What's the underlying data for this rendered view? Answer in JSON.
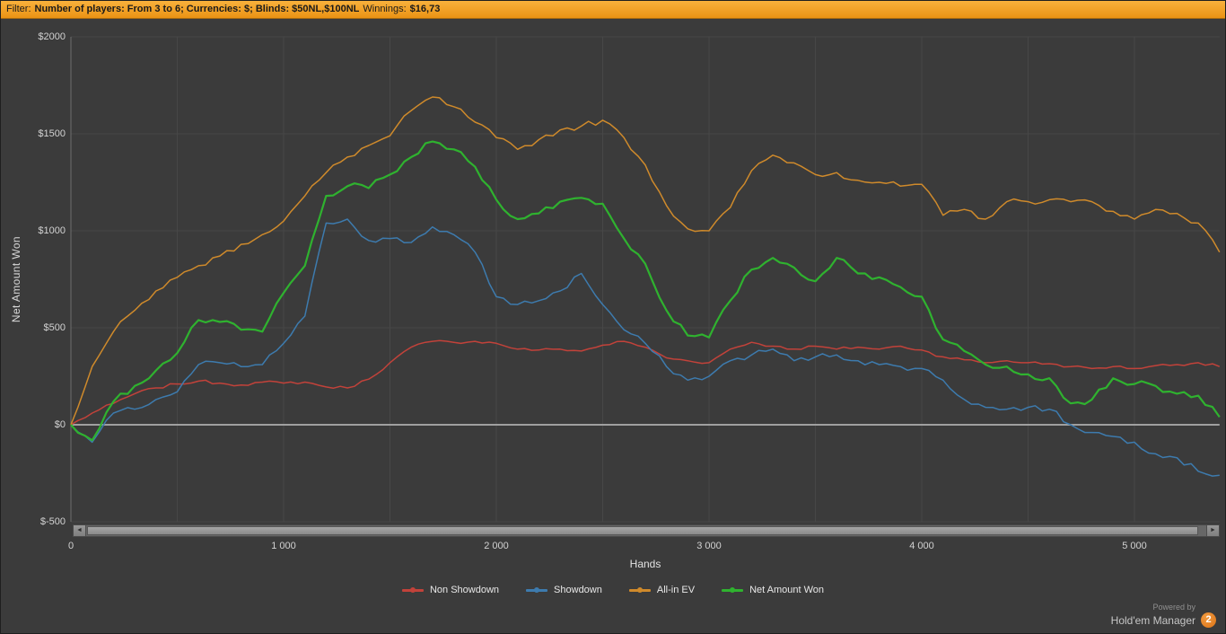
{
  "filter_bar": {
    "label": "Filter:",
    "criteria": "Number of players: From 3 to 6; Currencies: $; Blinds: $50NL,$100NL",
    "winnings_label": "Winnings:",
    "winnings_value": "$16,73"
  },
  "chart_data": {
    "type": "line",
    "title": "",
    "xlabel": "Hands",
    "ylabel": "Net Amount Won",
    "xlim": [
      0,
      5400
    ],
    "ylim": [
      -500,
      2000
    ],
    "grid": true,
    "legend_position": "bottom",
    "x_ticks": [
      0,
      1000,
      2000,
      3000,
      4000,
      5000
    ],
    "x_tick_labels": [
      "0",
      "1 000",
      "2 000",
      "3 000",
      "4 000",
      "5 000"
    ],
    "y_ticks": [
      2000,
      1500,
      1000,
      500,
      0,
      -500
    ],
    "y_tick_labels": [
      "$2000",
      "$1500",
      "$1000",
      "$500",
      "$0",
      "$-500"
    ],
    "x": [
      0,
      100,
      200,
      300,
      400,
      500,
      600,
      700,
      800,
      900,
      1000,
      1100,
      1200,
      1300,
      1400,
      1500,
      1600,
      1700,
      1800,
      1900,
      2000,
      2100,
      2200,
      2300,
      2400,
      2500,
      2600,
      2700,
      2800,
      2900,
      3000,
      3100,
      3200,
      3300,
      3400,
      3500,
      3600,
      3700,
      3800,
      3900,
      4000,
      4100,
      4200,
      4300,
      4400,
      4500,
      4600,
      4700,
      4800,
      4900,
      5000,
      5100,
      5200,
      5300,
      5400
    ],
    "series": [
      {
        "name": "Non Showdown",
        "color": "#c2423a",
        "values": [
          0,
          60,
          110,
          160,
          190,
          210,
          225,
          215,
          205,
          220,
          215,
          220,
          195,
          190,
          235,
          320,
          400,
          430,
          425,
          430,
          420,
          390,
          385,
          390,
          380,
          410,
          430,
          400,
          345,
          330,
          320,
          390,
          425,
          405,
          390,
          405,
          390,
          400,
          390,
          405,
          385,
          350,
          335,
          320,
          330,
          320,
          315,
          300,
          290,
          300,
          290,
          305,
          310,
          320,
          300
        ]
      },
      {
        "name": "Showdown",
        "color": "#3d7bae",
        "values": [
          0,
          -90,
          60,
          80,
          130,
          170,
          310,
          320,
          300,
          310,
          420,
          560,
          1040,
          1060,
          950,
          960,
          940,
          1020,
          980,
          890,
          660,
          620,
          640,
          690,
          780,
          620,
          490,
          420,
          300,
          230,
          250,
          330,
          360,
          390,
          330,
          350,
          360,
          330,
          310,
          300,
          290,
          230,
          130,
          90,
          80,
          90,
          80,
          0,
          -40,
          -60,
          -90,
          -150,
          -170,
          -240,
          -260
        ]
      },
      {
        "name": "All-in EV",
        "color": "#cf8a2b",
        "values": [
          0,
          300,
          480,
          590,
          690,
          760,
          820,
          870,
          930,
          980,
          1050,
          1180,
          1300,
          1380,
          1440,
          1490,
          1620,
          1690,
          1640,
          1560,
          1480,
          1420,
          1470,
          1520,
          1540,
          1570,
          1480,
          1340,
          1130,
          1010,
          1000,
          1120,
          1310,
          1390,
          1350,
          1290,
          1300,
          1260,
          1250,
          1230,
          1240,
          1080,
          1110,
          1060,
          1150,
          1150,
          1160,
          1150,
          1150,
          1100,
          1060,
          1110,
          1090,
          1040,
          890
        ]
      },
      {
        "name": "Net Amount Won",
        "color": "#2fb22f",
        "values": [
          0,
          -80,
          120,
          200,
          280,
          370,
          540,
          530,
          490,
          480,
          680,
          820,
          1180,
          1230,
          1220,
          1290,
          1380,
          1460,
          1420,
          1330,
          1160,
          1060,
          1090,
          1150,
          1170,
          1140,
          960,
          830,
          590,
          460,
          450,
          640,
          800,
          860,
          810,
          740,
          860,
          780,
          760,
          710,
          660,
          440,
          380,
          310,
          300,
          260,
          240,
          110,
          130,
          240,
          210,
          200,
          160,
          150,
          40
        ]
      }
    ]
  },
  "colors": {
    "background": "#3b3b3b",
    "filter_bar": "#f0a232",
    "zero_line": "#a0a0a0",
    "grid_line": "#474747",
    "axis_text": "#d2d2d2"
  },
  "scrollbar": {
    "left_arrow": "◄",
    "right_arrow": "►"
  },
  "footer": {
    "powered_by": "Powered by",
    "brand": "Hold'em Manager",
    "badge": "2"
  }
}
